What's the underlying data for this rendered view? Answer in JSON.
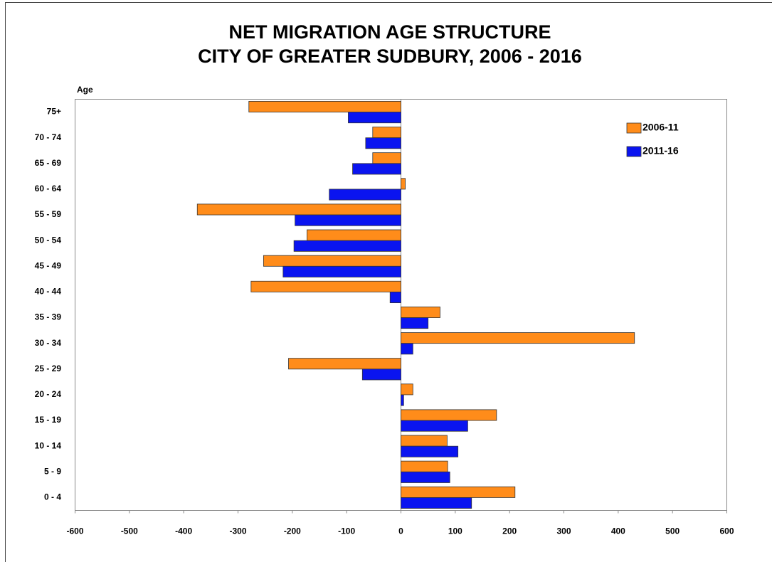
{
  "chart_data": {
    "type": "barh",
    "title": "NET MIGRATION AGE STRUCTURE",
    "subtitle": "CITY OF GREATER SUDBURY, 2006 - 2016",
    "y_label": "Age",
    "categories": [
      "75+",
      "70 - 74",
      "65 - 69",
      "60 - 64",
      "55 - 59",
      "50 - 54",
      "45 - 49",
      "40 - 44",
      "35 - 39",
      "30 - 34",
      "25 - 29",
      "20 - 24",
      "15 - 19",
      "10 - 14",
      "5 - 9",
      "0 - 4"
    ],
    "series": [
      {
        "name": "2006-11",
        "color": "#ff8c1a",
        "values": [
          -280,
          -52,
          -52,
          8,
          -375,
          -173,
          -253,
          -276,
          72,
          430,
          -207,
          22,
          176,
          85,
          86,
          210
        ]
      },
      {
        "name": "2011-16",
        "color": "#0a14f0",
        "values": [
          -97,
          -65,
          -89,
          -132,
          -195,
          -197,
          -217,
          -20,
          50,
          22,
          -71,
          5,
          123,
          105,
          90,
          130
        ]
      }
    ],
    "xlim": [
      -600,
      600
    ],
    "xticks": [
      -600,
      -500,
      -400,
      -300,
      -200,
      -100,
      0,
      100,
      200,
      300,
      400,
      500,
      600
    ],
    "legend": "upper right"
  }
}
